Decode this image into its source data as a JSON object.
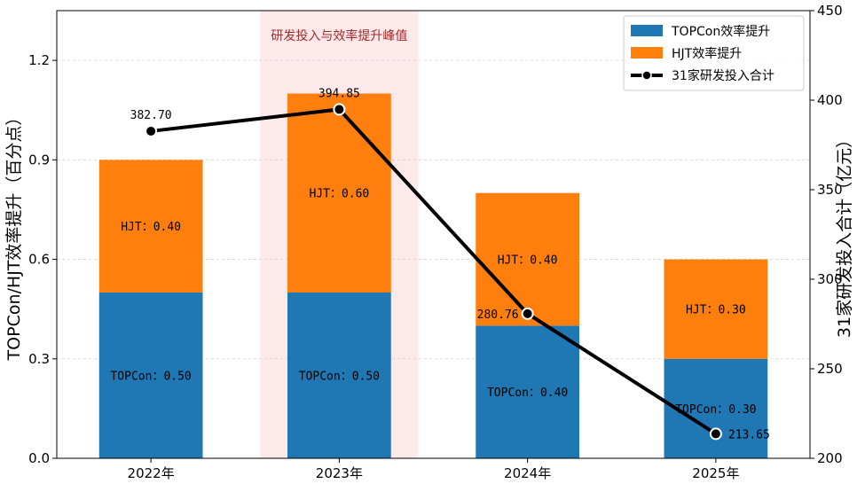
{
  "chart_data": {
    "type": "bar",
    "categories": [
      "2022年",
      "2023年",
      "2024年",
      "2025年"
    ],
    "series": [
      {
        "name": "TOPCon效率提升",
        "values": [
          0.5,
          0.5,
          0.4,
          0.3
        ],
        "color": "#1f77b4",
        "label_prefix": "TOPCon："
      },
      {
        "name": "HJT效率提升",
        "values": [
          0.4,
          0.6,
          0.4,
          0.3
        ],
        "color": "#ff7f0e",
        "label_prefix": "HJT："
      }
    ],
    "line_series": {
      "name": "31家研发投入合计",
      "values": [
        382.7,
        394.85,
        280.76,
        213.65
      ],
      "labels": [
        "382.70",
        "394.85",
        "280.76",
        "213.65"
      ],
      "color": "#000000"
    },
    "ylabel": "TOPCon/HJT效率提升（百分点）",
    "y2label": "31家研发投入合计（亿元）",
    "ylim": [
      0,
      1.35
    ],
    "y2lim": [
      200,
      450
    ],
    "yticks": [
      "0.0",
      "0.3",
      "0.6",
      "0.9",
      "1.2"
    ],
    "y2ticks": [
      "200",
      "250",
      "300",
      "350",
      "400",
      "450"
    ],
    "highlight": {
      "category_index": 1,
      "text": "研发投入与效率提升峰值",
      "color": "#fde8ea"
    },
    "legend_position": "top-right",
    "grid": "horizontal dashed"
  }
}
